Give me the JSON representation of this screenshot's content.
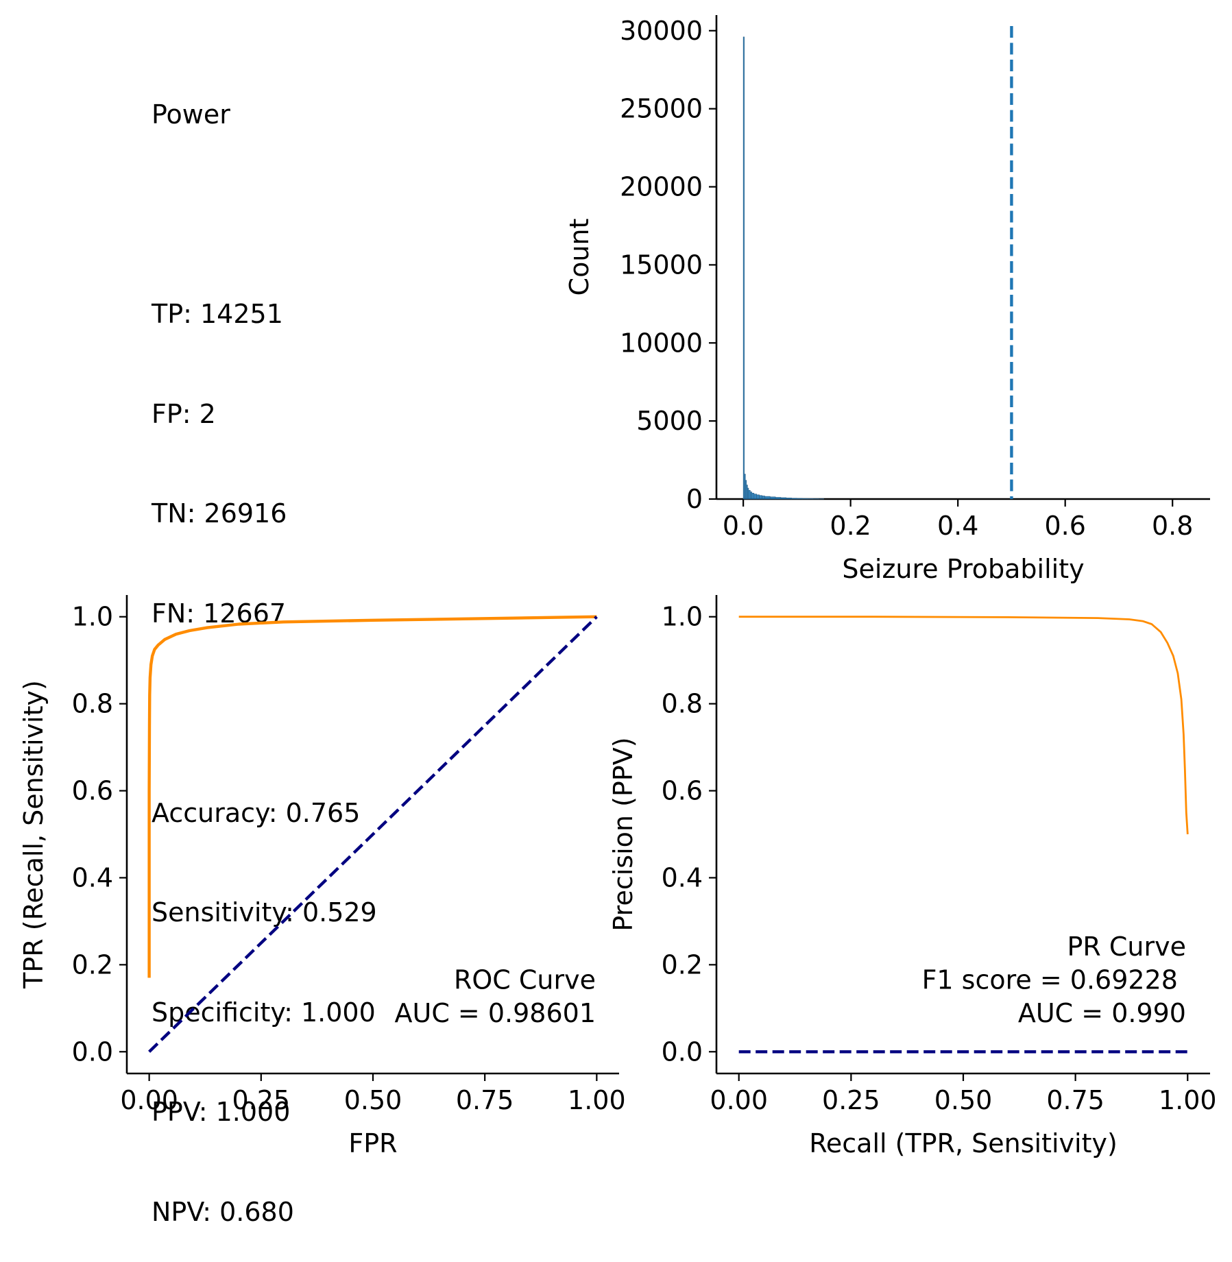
{
  "stats_panel": {
    "title": "Power",
    "counts": [
      "TP: 14251",
      "FP: 2",
      "TN: 26916",
      "FN: 12667"
    ],
    "metrics": [
      "Accuracy: 0.765",
      "Sensitivity: 0.529",
      "Specificity: 1.000",
      "PPV: 1.000",
      "NPV: 0.680"
    ]
  },
  "colors": {
    "roc_curve": "#ff8c00",
    "diagonal": "#000080",
    "histogram": "#1f77b4"
  },
  "chart_data": [
    {
      "id": "histogram",
      "type": "bar",
      "title": "",
      "xlabel": "Seizure Probability",
      "ylabel": "Count",
      "xlim": [
        -0.05,
        0.87
      ],
      "ylim": [
        0,
        31000
      ],
      "xticks": [
        "0.0",
        "0.2",
        "0.4",
        "0.6",
        "0.8"
      ],
      "yticks": [
        "0",
        "5000",
        "10000",
        "15000",
        "20000",
        "25000",
        "30000"
      ],
      "threshold": 0.5,
      "bins": [
        [
          0.0,
          29600
        ],
        [
          0.002,
          1600
        ],
        [
          0.004,
          1200
        ],
        [
          0.006,
          900
        ],
        [
          0.008,
          700
        ],
        [
          0.01,
          560
        ],
        [
          0.013,
          460
        ],
        [
          0.016,
          380
        ],
        [
          0.02,
          320
        ],
        [
          0.025,
          270
        ],
        [
          0.03,
          230
        ],
        [
          0.035,
          200
        ],
        [
          0.04,
          170
        ],
        [
          0.05,
          140
        ],
        [
          0.06,
          110
        ],
        [
          0.07,
          90
        ],
        [
          0.08,
          70
        ],
        [
          0.09,
          55
        ],
        [
          0.1,
          45
        ],
        [
          0.11,
          35
        ],
        [
          0.12,
          28
        ],
        [
          0.13,
          22
        ],
        [
          0.14,
          15
        ]
      ],
      "grid": false
    },
    {
      "id": "roc",
      "type": "line",
      "xlabel": "FPR",
      "ylabel": "TPR (Recall, Sensitivity)",
      "xlim": [
        -0.05,
        1.05
      ],
      "ylim": [
        -0.05,
        1.05
      ],
      "xticks": [
        "0.00",
        "0.25",
        "0.50",
        "0.75",
        "1.00"
      ],
      "yticks": [
        "0.0",
        "0.2",
        "0.4",
        "0.6",
        "0.8",
        "1.0"
      ],
      "annotation": [
        "ROC Curve",
        "AUC = 0.98601"
      ],
      "series": [
        {
          "values": [
            [
              0,
              0.17
            ],
            [
              0,
              0.6
            ],
            [
              0.0005,
              0.75
            ],
            [
              0.001,
              0.82
            ],
            [
              0.002,
              0.86
            ],
            [
              0.004,
              0.89
            ],
            [
              0.007,
              0.91
            ],
            [
              0.012,
              0.925
            ],
            [
              0.02,
              0.935
            ],
            [
              0.035,
              0.948
            ],
            [
              0.06,
              0.96
            ],
            [
              0.09,
              0.968
            ],
            [
              0.13,
              0.975
            ],
            [
              0.2,
              0.983
            ],
            [
              0.3,
              0.988
            ],
            [
              0.5,
              0.992
            ],
            [
              0.75,
              0.996
            ],
            [
              1.0,
              1.0
            ]
          ]
        },
        {
          "values": [
            [
              0,
              0
            ],
            [
              1,
              1
            ]
          ]
        }
      ],
      "grid": false
    },
    {
      "id": "pr",
      "type": "line",
      "xlabel": "Recall (TPR, Sensitivity)",
      "ylabel": "Precision (PPV)",
      "xlim": [
        -0.05,
        1.05
      ],
      "ylim": [
        -0.05,
        1.05
      ],
      "xticks": [
        "0.00",
        "0.25",
        "0.50",
        "0.75",
        "1.00"
      ],
      "yticks": [
        "0.0",
        "0.2",
        "0.4",
        "0.6",
        "0.8",
        "1.0"
      ],
      "annotation": [
        "PR Curve",
        "F1 score = 0.69228 ",
        "AUC = 0.990"
      ],
      "series": [
        {
          "values": [
            [
              0,
              1.0
            ],
            [
              0.3,
              1.0
            ],
            [
              0.6,
              0.999
            ],
            [
              0.8,
              0.997
            ],
            [
              0.87,
              0.994
            ],
            [
              0.9,
              0.99
            ],
            [
              0.92,
              0.983
            ],
            [
              0.94,
              0.965
            ],
            [
              0.955,
              0.94
            ],
            [
              0.968,
              0.91
            ],
            [
              0.978,
              0.87
            ],
            [
              0.986,
              0.81
            ],
            [
              0.991,
              0.73
            ],
            [
              0.994,
              0.65
            ],
            [
              0.997,
              0.55
            ],
            [
              1.0,
              0.5
            ]
          ]
        },
        {
          "values": [
            [
              0,
              0
            ],
            [
              1,
              0
            ]
          ]
        }
      ],
      "grid": false
    }
  ]
}
